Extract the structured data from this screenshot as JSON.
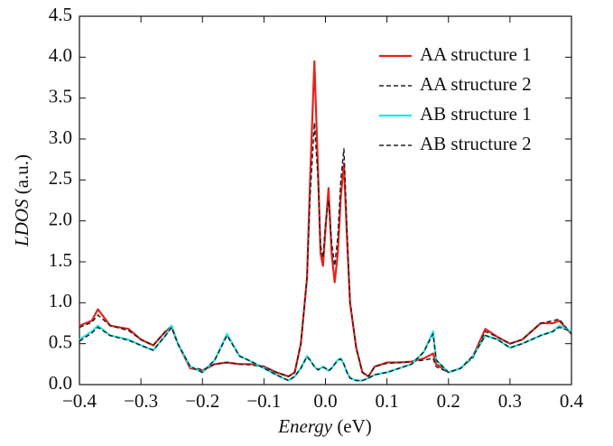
{
  "chart_data": {
    "type": "line",
    "xlabel_var": "Energy",
    "xlabel_unit": "(eV)",
    "ylabel_var": "LDOS",
    "ylabel_unit": "(a.u.)",
    "x": [
      -0.4,
      -0.38,
      -0.37,
      -0.35,
      -0.32,
      -0.3,
      -0.28,
      -0.26,
      -0.25,
      -0.24,
      -0.22,
      -0.2,
      -0.18,
      -0.16,
      -0.14,
      -0.12,
      -0.1,
      -0.08,
      -0.06,
      -0.05,
      -0.04,
      -0.03,
      -0.025,
      -0.018,
      -0.012,
      -0.008,
      -0.004,
      0,
      0.005,
      0.01,
      0.015,
      0.02,
      0.025,
      0.03,
      0.035,
      0.04,
      0.05,
      0.06,
      0.07,
      0.08,
      0.1,
      0.12,
      0.14,
      0.16,
      0.175,
      0.18,
      0.2,
      0.22,
      0.24,
      0.26,
      0.28,
      0.3,
      0.32,
      0.35,
      0.37,
      0.38,
      0.4
    ],
    "series": [
      {
        "name": "AA structure 1",
        "color": "#e8221c",
        "dashed": false,
        "values": [
          0.72,
          0.78,
          0.92,
          0.72,
          0.68,
          0.55,
          0.48,
          0.65,
          0.7,
          0.5,
          0.2,
          0.17,
          0.25,
          0.27,
          0.25,
          0.25,
          0.22,
          0.15,
          0.1,
          0.15,
          0.5,
          1.3,
          2.5,
          3.95,
          2.6,
          1.6,
          1.45,
          1.9,
          2.4,
          1.6,
          1.25,
          1.6,
          2.3,
          2.7,
          1.8,
          1.0,
          0.45,
          0.15,
          0.1,
          0.22,
          0.27,
          0.27,
          0.28,
          0.32,
          0.38,
          0.25,
          0.15,
          0.2,
          0.35,
          0.68,
          0.58,
          0.5,
          0.55,
          0.75,
          0.75,
          0.78,
          0.62
        ]
      },
      {
        "name": "AA structure 2",
        "color": "#222222",
        "dashed": true,
        "values": [
          0.7,
          0.76,
          0.85,
          0.72,
          0.66,
          0.55,
          0.48,
          0.65,
          0.72,
          0.5,
          0.22,
          0.18,
          0.25,
          0.27,
          0.25,
          0.24,
          0.22,
          0.15,
          0.1,
          0.15,
          0.5,
          1.3,
          2.3,
          3.2,
          2.5,
          1.7,
          1.55,
          1.95,
          2.25,
          1.75,
          1.45,
          1.8,
          2.5,
          2.88,
          1.9,
          1.0,
          0.45,
          0.15,
          0.1,
          0.22,
          0.26,
          0.27,
          0.28,
          0.3,
          0.32,
          0.22,
          0.15,
          0.2,
          0.33,
          0.65,
          0.58,
          0.5,
          0.55,
          0.75,
          0.78,
          0.8,
          0.62
        ]
      },
      {
        "name": "AB structure 1",
        "color": "#22e6e6",
        "dashed": false,
        "values": [
          0.55,
          0.65,
          0.72,
          0.6,
          0.55,
          0.48,
          0.42,
          0.6,
          0.72,
          0.5,
          0.22,
          0.15,
          0.3,
          0.62,
          0.35,
          0.28,
          0.2,
          0.12,
          0.05,
          0.1,
          0.2,
          0.35,
          0.3,
          0.22,
          0.18,
          0.2,
          0.22,
          0.2,
          0.17,
          0.2,
          0.25,
          0.3,
          0.32,
          0.25,
          0.15,
          0.08,
          0.05,
          0.05,
          0.08,
          0.12,
          0.15,
          0.2,
          0.25,
          0.4,
          0.65,
          0.3,
          0.15,
          0.2,
          0.35,
          0.6,
          0.55,
          0.45,
          0.5,
          0.6,
          0.65,
          0.72,
          0.65
        ]
      },
      {
        "name": "AB structure 2",
        "color": "#222222",
        "dashed": true,
        "values": [
          0.53,
          0.63,
          0.7,
          0.6,
          0.54,
          0.48,
          0.42,
          0.6,
          0.7,
          0.5,
          0.22,
          0.15,
          0.3,
          0.6,
          0.35,
          0.28,
          0.2,
          0.12,
          0.05,
          0.1,
          0.2,
          0.34,
          0.3,
          0.22,
          0.18,
          0.2,
          0.21,
          0.2,
          0.17,
          0.2,
          0.25,
          0.3,
          0.31,
          0.25,
          0.15,
          0.08,
          0.05,
          0.05,
          0.08,
          0.12,
          0.15,
          0.2,
          0.25,
          0.4,
          0.62,
          0.3,
          0.15,
          0.2,
          0.35,
          0.6,
          0.55,
          0.45,
          0.5,
          0.6,
          0.65,
          0.7,
          0.65
        ]
      }
    ],
    "xlim": [
      -0.4,
      0.4
    ],
    "xticks": [
      {
        "value": -0.4,
        "label": "−0.4"
      },
      {
        "value": -0.3,
        "label": "−0.3"
      },
      {
        "value": -0.2,
        "label": "−0.2"
      },
      {
        "value": -0.1,
        "label": "−0.1"
      },
      {
        "value": 0,
        "label": "0.0"
      },
      0.1,
      0.2,
      0.3,
      0.4
    ],
    "ylim": [
      0,
      4.5
    ],
    "yticks": [
      {
        "value": 0,
        "label": "0.0"
      },
      0.5,
      {
        "value": 1,
        "label": "1.0"
      },
      1.5,
      {
        "value": 2,
        "label": "2.0"
      },
      2.5,
      {
        "value": 3,
        "label": "3.0"
      },
      3.5,
      {
        "value": 4,
        "label": "4.0"
      },
      4.5
    ],
    "grid": false,
    "legend": "upper right"
  }
}
